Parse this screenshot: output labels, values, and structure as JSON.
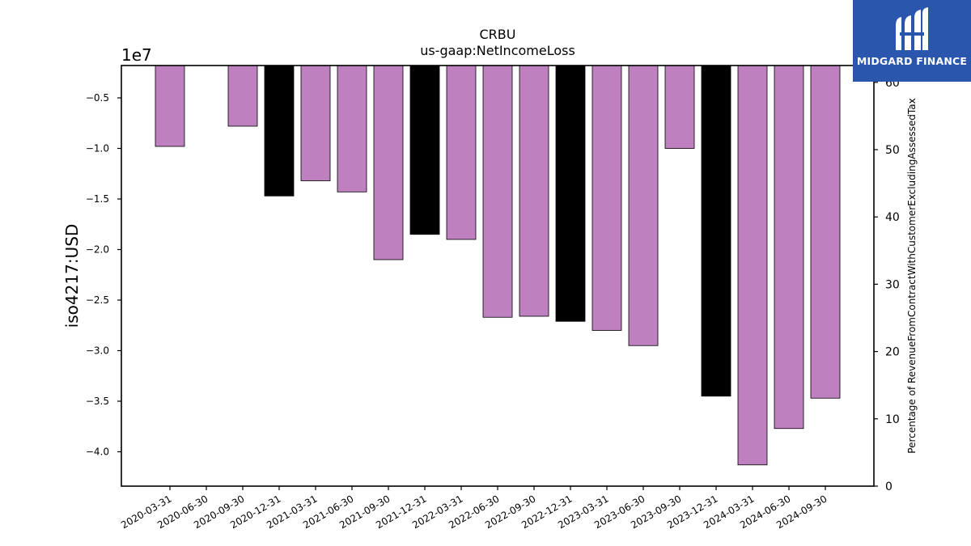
{
  "chart_data": {
    "type": "bar",
    "title": "CRBU",
    "subtitle": "us-gaap:NetIncomeLoss",
    "ylabel": "iso4217:USD",
    "y2label": "Percentage of RevenueFromContractWithCustomerExcludingAssessedTax",
    "offset_label": "1e7",
    "ylim": [
      -43400000,
      -1800000
    ],
    "y_ticks": [
      -5000000,
      -10000000,
      -15000000,
      -20000000,
      -25000000,
      -30000000,
      -35000000,
      -40000000
    ],
    "y_tick_labels": [
      "−0.5",
      "−1.0",
      "−1.5",
      "−2.0",
      "−2.5",
      "−3.0",
      "−3.5",
      "−4.0"
    ],
    "y2lim": [
      0,
      62.5
    ],
    "y2_ticks": [
      0,
      10,
      20,
      30,
      40,
      50,
      60
    ],
    "y2_tick_labels": [
      "0",
      "10",
      "20",
      "30",
      "40",
      "50",
      "60"
    ],
    "categories": [
      "2020-03-31",
      "2020-06-30",
      "2020-09-30",
      "2020-12-31",
      "2021-03-31",
      "2021-06-30",
      "2021-09-30",
      "2021-12-31",
      "2022-03-31",
      "2022-06-30",
      "2022-09-30",
      "2022-12-31",
      "2023-03-31",
      "2023-06-30",
      "2023-09-30",
      "2023-12-31",
      "2024-03-31",
      "2024-06-30",
      "2024-09-30"
    ],
    "values": [
      -9800000,
      null,
      -7800000,
      -14700000,
      -13200000,
      -14300000,
      -21000000,
      -18500000,
      -19000000,
      -26700000,
      -26600000,
      -27100000,
      -28000000,
      -29500000,
      -10000000,
      -34500000,
      -41300000,
      -37700000,
      -34700000
    ],
    "bar_colors": [
      "#bf80bf",
      null,
      "#bf80bf",
      "#000000",
      "#bf80bf",
      "#bf80bf",
      "#bf80bf",
      "#000000",
      "#bf80bf",
      "#bf80bf",
      "#bf80bf",
      "#000000",
      "#bf80bf",
      "#bf80bf",
      "#bf80bf",
      "#000000",
      "#bf80bf",
      "#bf80bf",
      "#bf80bf"
    ],
    "colors": {
      "quarter": "#bf80bf",
      "annual": "#000000"
    },
    "grid": false
  },
  "logo": {
    "text": "MIDGARD FINANCE",
    "background": "#2b56ad"
  }
}
